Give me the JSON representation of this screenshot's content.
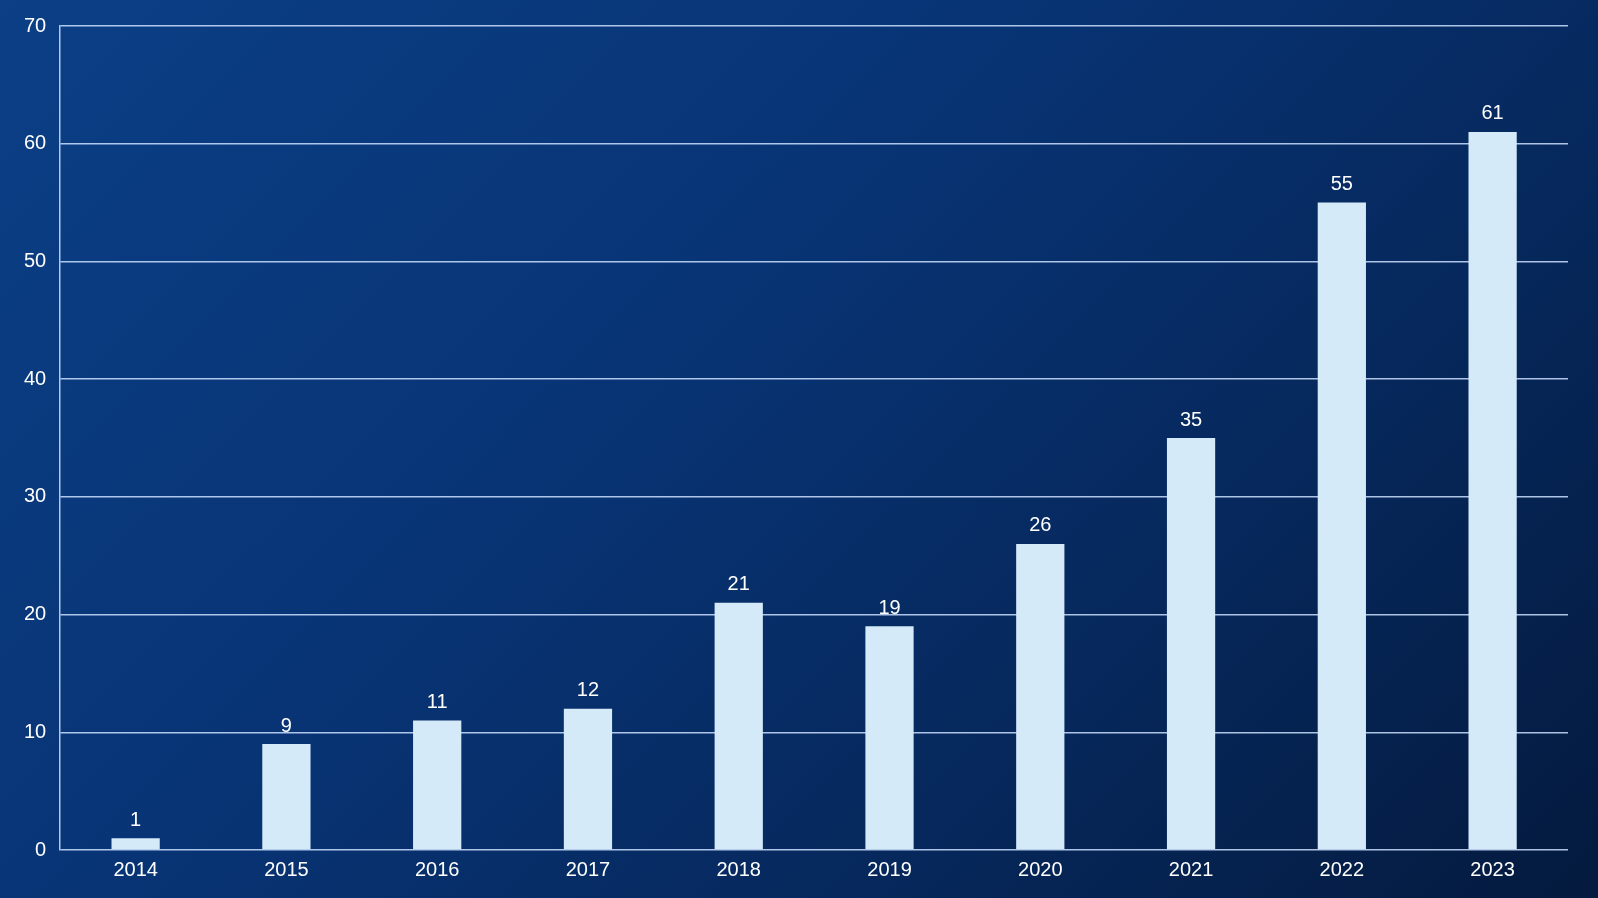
{
  "chart_data": {
    "type": "bar",
    "categories": [
      "2014",
      "2015",
      "2016",
      "2017",
      "2018",
      "2019",
      "2020",
      "2021",
      "2022",
      "2023"
    ],
    "values": [
      1,
      9,
      11,
      12,
      21,
      19,
      26,
      35,
      55,
      61
    ],
    "color": "#d4eaf9",
    "ylim": [
      0,
      70
    ],
    "yticks": [
      0,
      10,
      20,
      30,
      40,
      50,
      60,
      70
    ],
    "grid": true,
    "data_labels": true
  }
}
